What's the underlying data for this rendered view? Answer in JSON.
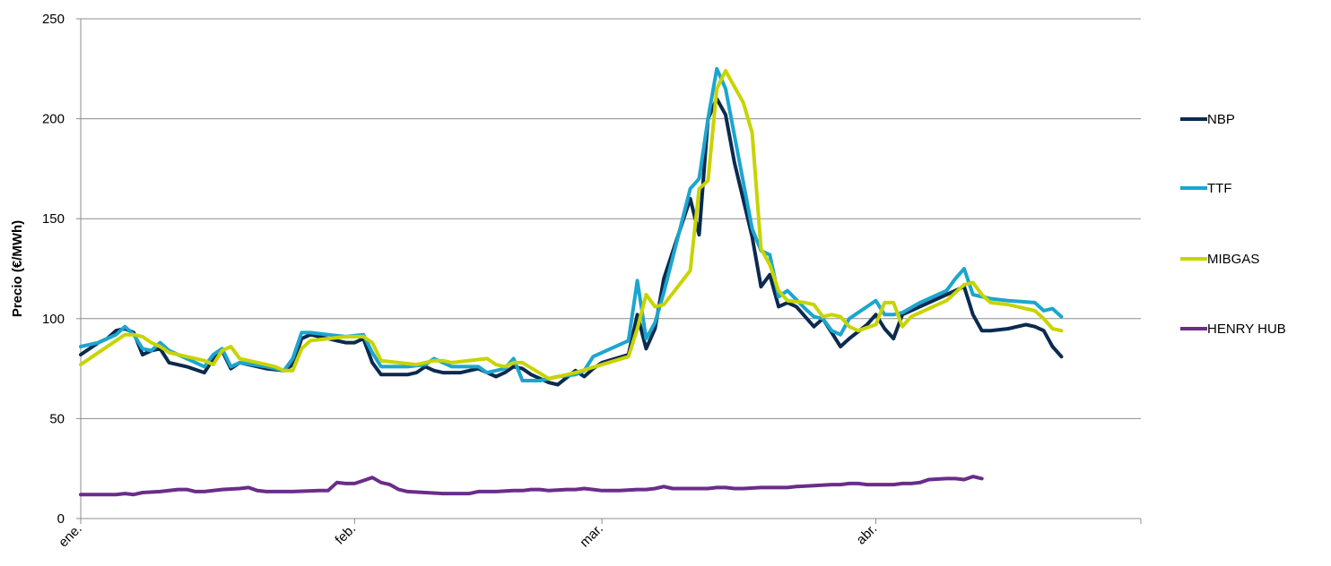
{
  "chart_data": {
    "type": "line",
    "title": "",
    "xlabel": "",
    "ylabel": "Precio (€/MWh)",
    "ylim": [
      0,
      250
    ],
    "yticks": [
      "0",
      "50",
      "100",
      "150",
      "200",
      "250"
    ],
    "xlim": [
      1,
      121
    ],
    "xticks": [
      {
        "label": "ene.",
        "day": 1
      },
      {
        "label": "feb.",
        "day": 32
      },
      {
        "label": "mar.",
        "day": 60
      },
      {
        "label": "abr.",
        "day": 91
      }
    ],
    "grid": "horizontal",
    "legend_position": "right",
    "series": [
      {
        "name": "NBP",
        "color": "#0b2a4f",
        "points": [
          [
            1,
            82
          ],
          [
            3,
            88
          ],
          [
            4,
            90
          ],
          [
            5,
            94
          ],
          [
            6,
            95
          ],
          [
            7,
            93
          ],
          [
            8,
            82
          ],
          [
            9,
            84
          ],
          [
            10,
            85
          ],
          [
            11,
            78
          ],
          [
            13,
            76
          ],
          [
            15,
            73
          ],
          [
            16,
            80
          ],
          [
            17,
            84
          ],
          [
            18,
            75
          ],
          [
            19,
            78
          ],
          [
            22,
            75
          ],
          [
            24,
            74
          ],
          [
            25,
            77
          ],
          [
            26,
            90
          ],
          [
            27,
            92
          ],
          [
            29,
            90
          ],
          [
            30,
            89
          ],
          [
            31,
            88
          ],
          [
            32,
            88
          ],
          [
            33,
            90
          ],
          [
            34,
            78
          ],
          [
            35,
            72
          ],
          [
            38,
            72
          ],
          [
            39,
            73
          ],
          [
            40,
            76
          ],
          [
            41,
            74
          ],
          [
            42,
            73
          ],
          [
            44,
            73
          ],
          [
            46,
            75
          ],
          [
            47,
            73
          ],
          [
            48,
            71
          ],
          [
            49,
            73
          ],
          [
            50,
            76
          ],
          [
            51,
            75
          ],
          [
            52,
            72
          ],
          [
            54,
            68
          ],
          [
            55,
            67
          ],
          [
            57,
            74
          ],
          [
            58,
            71
          ],
          [
            59,
            75
          ],
          [
            60,
            78
          ],
          [
            63,
            82
          ],
          [
            64,
            102
          ],
          [
            65,
            85
          ],
          [
            66,
            95
          ],
          [
            67,
            120
          ],
          [
            70,
            160
          ],
          [
            71,
            142
          ],
          [
            72,
            200
          ],
          [
            73,
            210
          ],
          [
            74,
            202
          ],
          [
            75,
            178
          ],
          [
            77,
            141
          ],
          [
            78,
            116
          ],
          [
            79,
            122
          ],
          [
            80,
            106
          ],
          [
            81,
            108
          ],
          [
            82,
            106
          ],
          [
            84,
            96
          ],
          [
            85,
            100
          ],
          [
            86,
            93
          ],
          [
            87,
            86
          ],
          [
            88,
            90
          ],
          [
            90,
            97
          ],
          [
            91,
            102
          ],
          [
            92,
            95
          ],
          [
            93,
            90
          ],
          [
            94,
            102
          ],
          [
            97,
            108
          ],
          [
            99,
            112
          ],
          [
            101,
            116
          ],
          [
            102,
            102
          ],
          [
            103,
            94
          ],
          [
            104,
            94
          ],
          [
            106,
            95
          ],
          [
            108,
            97
          ],
          [
            109,
            96
          ],
          [
            110,
            94
          ],
          [
            111,
            86
          ],
          [
            112,
            81
          ]
        ]
      },
      {
        "name": "TTF",
        "color": "#1ba6cf",
        "points": [
          [
            1,
            86
          ],
          [
            3,
            88
          ],
          [
            5,
            92
          ],
          [
            6,
            96
          ],
          [
            7,
            92
          ],
          [
            8,
            85
          ],
          [
            9,
            84
          ],
          [
            10,
            88
          ],
          [
            11,
            84
          ],
          [
            13,
            80
          ],
          [
            15,
            76
          ],
          [
            16,
            82
          ],
          [
            17,
            85
          ],
          [
            18,
            76
          ],
          [
            19,
            78
          ],
          [
            22,
            76
          ],
          [
            24,
            74
          ],
          [
            25,
            80
          ],
          [
            26,
            93
          ],
          [
            27,
            93
          ],
          [
            29,
            92
          ],
          [
            31,
            91
          ],
          [
            33,
            92
          ],
          [
            34,
            83
          ],
          [
            35,
            76
          ],
          [
            38,
            76
          ],
          [
            40,
            77
          ],
          [
            41,
            80
          ],
          [
            42,
            78
          ],
          [
            43,
            76
          ],
          [
            46,
            76
          ],
          [
            47,
            73
          ],
          [
            49,
            75
          ],
          [
            50,
            80
          ],
          [
            51,
            69
          ],
          [
            53,
            69
          ],
          [
            54,
            70
          ],
          [
            55,
            71
          ],
          [
            57,
            72
          ],
          [
            58,
            74
          ],
          [
            59,
            81
          ],
          [
            63,
            89
          ],
          [
            64,
            119
          ],
          [
            65,
            90
          ],
          [
            66,
            98
          ],
          [
            67,
            113
          ],
          [
            70,
            165
          ],
          [
            71,
            170
          ],
          [
            72,
            200
          ],
          [
            73,
            225
          ],
          [
            74,
            215
          ],
          [
            77,
            145
          ],
          [
            78,
            134
          ],
          [
            79,
            132
          ],
          [
            80,
            111
          ],
          [
            81,
            114
          ],
          [
            83,
            105
          ],
          [
            84,
            101
          ],
          [
            85,
            100
          ],
          [
            86,
            94
          ],
          [
            87,
            92
          ],
          [
            88,
            100
          ],
          [
            90,
            106
          ],
          [
            91,
            109
          ],
          [
            92,
            102
          ],
          [
            93,
            102
          ],
          [
            94,
            103
          ],
          [
            96,
            108
          ],
          [
            99,
            114
          ],
          [
            100,
            120
          ],
          [
            101,
            125
          ],
          [
            102,
            112
          ],
          [
            104,
            110
          ],
          [
            106,
            109
          ],
          [
            109,
            108
          ],
          [
            110,
            104
          ],
          [
            111,
            105
          ],
          [
            112,
            101
          ]
        ]
      },
      {
        "name": "MIBGAS",
        "color": "#c8d400",
        "points": [
          [
            1,
            77
          ],
          [
            3,
            83
          ],
          [
            5,
            89
          ],
          [
            6,
            92
          ],
          [
            7,
            92
          ],
          [
            8,
            91
          ],
          [
            9,
            88
          ],
          [
            10,
            86
          ],
          [
            11,
            83
          ],
          [
            15,
            79
          ],
          [
            16,
            77
          ],
          [
            17,
            84
          ],
          [
            18,
            86
          ],
          [
            19,
            80
          ],
          [
            22,
            77
          ],
          [
            23,
            76
          ],
          [
            24,
            74
          ],
          [
            25,
            74
          ],
          [
            26,
            85
          ],
          [
            27,
            89
          ],
          [
            29,
            90
          ],
          [
            31,
            91
          ],
          [
            33,
            91
          ],
          [
            34,
            88
          ],
          [
            35,
            79
          ],
          [
            39,
            77
          ],
          [
            41,
            79
          ],
          [
            42,
            79
          ],
          [
            43,
            78
          ],
          [
            47,
            80
          ],
          [
            48,
            77
          ],
          [
            49,
            76
          ],
          [
            50,
            78
          ],
          [
            51,
            78
          ],
          [
            54,
            70
          ],
          [
            57,
            73
          ],
          [
            63,
            81
          ],
          [
            64,
            95
          ],
          [
            65,
            112
          ],
          [
            66,
            106
          ],
          [
            67,
            107
          ],
          [
            70,
            124
          ],
          [
            71,
            165
          ],
          [
            72,
            169
          ],
          [
            73,
            215
          ],
          [
            74,
            224
          ],
          [
            76,
            208
          ],
          [
            77,
            193
          ],
          [
            78,
            135
          ],
          [
            79,
            127
          ],
          [
            80,
            114
          ],
          [
            81,
            109
          ],
          [
            83,
            108
          ],
          [
            84,
            107
          ],
          [
            85,
            101
          ],
          [
            86,
            102
          ],
          [
            87,
            101
          ],
          [
            88,
            96
          ],
          [
            89,
            94
          ],
          [
            91,
            97
          ],
          [
            92,
            108
          ],
          [
            93,
            108
          ],
          [
            94,
            96
          ],
          [
            95,
            101
          ],
          [
            97,
            105
          ],
          [
            99,
            109
          ],
          [
            100,
            113
          ],
          [
            101,
            117
          ],
          [
            102,
            118
          ],
          [
            103,
            112
          ],
          [
            104,
            108
          ],
          [
            106,
            107
          ],
          [
            109,
            104
          ],
          [
            110,
            100
          ],
          [
            111,
            95
          ],
          [
            112,
            94
          ]
        ]
      },
      {
        "name": "HENRY HUB",
        "color": "#6a2d8a",
        "points": [
          [
            1,
            12
          ],
          [
            5,
            12
          ],
          [
            6,
            12.5
          ],
          [
            7,
            12
          ],
          [
            8,
            13
          ],
          [
            10,
            13.5
          ],
          [
            12,
            14.5
          ],
          [
            13,
            14.5
          ],
          [
            14,
            13.5
          ],
          [
            15,
            13.5
          ],
          [
            17,
            14.5
          ],
          [
            19,
            15
          ],
          [
            20,
            15.5
          ],
          [
            21,
            14
          ],
          [
            22,
            13.5
          ],
          [
            25,
            13.5
          ],
          [
            28,
            14
          ],
          [
            29,
            14
          ],
          [
            30,
            18
          ],
          [
            31,
            17.5
          ],
          [
            32,
            17.5
          ],
          [
            33,
            19
          ],
          [
            34,
            20.5
          ],
          [
            35,
            18
          ],
          [
            36,
            17
          ],
          [
            37,
            14.5
          ],
          [
            38,
            13.5
          ],
          [
            40,
            13
          ],
          [
            42,
            12.5
          ],
          [
            45,
            12.5
          ],
          [
            46,
            13.5
          ],
          [
            48,
            13.5
          ],
          [
            50,
            14
          ],
          [
            51,
            14
          ],
          [
            52,
            14.5
          ],
          [
            53,
            14.5
          ],
          [
            54,
            14
          ],
          [
            56,
            14.5
          ],
          [
            57,
            14.5
          ],
          [
            58,
            15
          ],
          [
            59,
            14.5
          ],
          [
            60,
            14
          ],
          [
            62,
            14
          ],
          [
            64,
            14.5
          ],
          [
            65,
            14.5
          ],
          [
            66,
            15
          ],
          [
            67,
            16
          ],
          [
            68,
            15
          ],
          [
            69,
            15
          ],
          [
            71,
            15
          ],
          [
            72,
            15
          ],
          [
            73,
            15.5
          ],
          [
            74,
            15.5
          ],
          [
            75,
            15
          ],
          [
            76,
            15
          ],
          [
            78,
            15.5
          ],
          [
            80,
            15.5
          ],
          [
            81,
            15.5
          ],
          [
            82,
            16
          ],
          [
            84,
            16.5
          ],
          [
            86,
            17
          ],
          [
            87,
            17
          ],
          [
            88,
            17.5
          ],
          [
            89,
            17.5
          ],
          [
            90,
            17
          ],
          [
            92,
            17
          ],
          [
            93,
            17
          ],
          [
            94,
            17.5
          ],
          [
            95,
            17.5
          ],
          [
            96,
            18
          ],
          [
            97,
            19.5
          ],
          [
            99,
            20
          ],
          [
            100,
            20
          ],
          [
            101,
            19.5
          ],
          [
            102,
            21
          ],
          [
            103,
            20
          ]
        ]
      }
    ]
  }
}
